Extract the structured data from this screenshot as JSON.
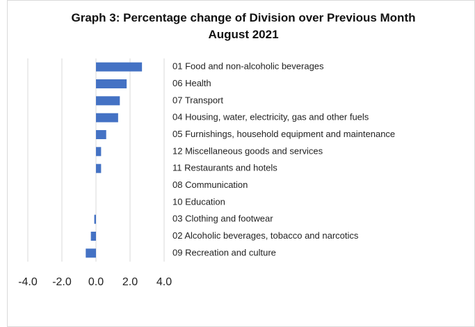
{
  "chart_data": {
    "type": "bar",
    "orientation": "horizontal",
    "title": "Graph 3: Percentage change of Division over Previous Month August 2021",
    "categories": [
      "01 Food and non-alcoholic beverages",
      "06 Health",
      "07 Transport",
      "04 Housing, water, electricity, gas and other fuels",
      "05 Furnishings, household equipment and maintenance",
      "12 Miscellaneous goods and services",
      "11 Restaurants and hotels",
      "08 Communication",
      "10 Education",
      "03 Clothing and footwear",
      "02 Alcoholic beverages, tobacco and narcotics",
      "09 Recreation and culture"
    ],
    "values": [
      2.7,
      1.8,
      1.4,
      1.3,
      0.6,
      0.3,
      0.3,
      0,
      0,
      -0.1,
      -0.3,
      -0.6
    ],
    "color": "#4472c4",
    "xlim": [
      -4,
      4
    ],
    "xticks": [
      {
        "value": -4,
        "label": "-4.0"
      },
      {
        "value": -2,
        "label": "-2.0"
      },
      {
        "value": 0,
        "label": "0.0"
      },
      {
        "value": 2,
        "label": "2.0"
      },
      {
        "value": 4,
        "label": "4.0"
      }
    ],
    "grid": true
  }
}
